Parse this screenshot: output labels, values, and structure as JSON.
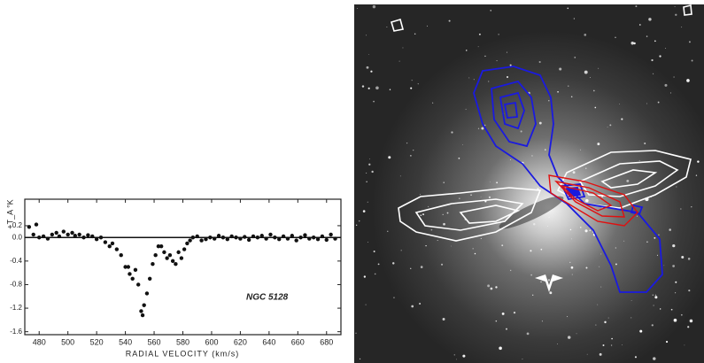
{
  "chart_data": {
    "type": "scatter",
    "y_label": "+T_A °K",
    "x_label": "RADIAL VELOCITY (km/s)",
    "annotation": "NGC 5128",
    "color": "#111111",
    "xlim": [
      470,
      690
    ],
    "ylim": [
      -1.65,
      0.65
    ],
    "xticks": [
      480,
      500,
      520,
      540,
      560,
      580,
      600,
      620,
      640,
      660,
      680
    ],
    "yticks": [
      0.2,
      {
        "value": 0,
        "label": "0.0"
      },
      -0.4,
      -0.8,
      -1.2,
      -1.6
    ],
    "x": [
      473,
      476,
      478,
      480,
      483,
      486,
      489,
      492,
      494,
      497,
      500,
      503,
      505,
      508,
      511,
      514,
      517,
      520,
      523,
      526,
      529,
      531,
      534,
      537,
      540,
      542,
      543,
      545,
      547,
      549,
      551,
      552,
      553,
      555,
      557,
      559,
      561,
      563,
      565,
      567,
      569,
      571,
      573,
      575,
      577,
      579,
      581,
      583,
      585,
      587,
      590,
      593,
      596,
      599,
      602,
      605,
      608,
      611,
      614,
      617,
      620,
      623,
      626,
      629,
      632,
      635,
      638,
      641,
      644,
      647,
      650,
      653,
      656,
      659,
      662,
      665,
      668,
      671,
      674,
      677,
      680,
      683,
      686
    ],
    "values": [
      0.18,
      0.05,
      0.22,
      0.0,
      0.02,
      -0.02,
      0.05,
      0.08,
      0.02,
      0.1,
      0.05,
      0.08,
      0.03,
      0.05,
      0.0,
      0.04,
      0.02,
      -0.03,
      0.0,
      -0.08,
      -0.15,
      -0.1,
      -0.2,
      -0.3,
      -0.5,
      -0.5,
      -0.62,
      -0.7,
      -0.55,
      -0.8,
      -1.25,
      -1.32,
      -1.15,
      -0.95,
      -0.7,
      -0.45,
      -0.3,
      -0.15,
      -0.15,
      -0.25,
      -0.35,
      -0.3,
      -0.4,
      -0.45,
      -0.25,
      -0.35,
      -0.2,
      -0.1,
      -0.05,
      0.0,
      0.02,
      -0.05,
      -0.03,
      0.0,
      -0.02,
      0.03,
      0.0,
      -0.03,
      0.02,
      0.0,
      -0.02,
      0.01,
      -0.04,
      0.02,
      0.0,
      0.03,
      -0.02,
      0.05,
      0.0,
      -0.03,
      0.02,
      -0.02,
      0.03,
      -0.05,
      0.0,
      0.04,
      -0.02,
      0.0,
      -0.03,
      0.02,
      -0.04,
      0.05,
      -0.02
    ]
  }
}
